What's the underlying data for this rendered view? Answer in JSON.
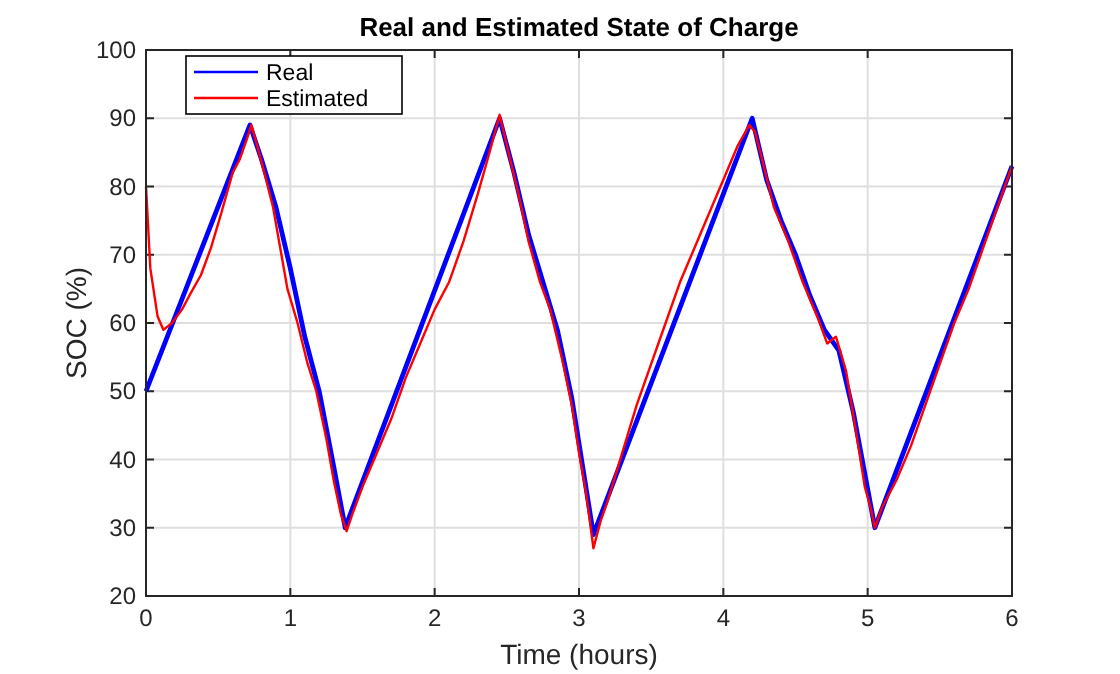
{
  "chart_data": {
    "type": "line",
    "title": "Real and Estimated State of Charge",
    "xlabel": "Time (hours)",
    "ylabel": "SOC (%)",
    "xlim": [
      0,
      6
    ],
    "xticks": [
      0,
      1,
      2,
      3,
      4,
      5,
      6
    ],
    "ylim": [
      20,
      100
    ],
    "yticks": [
      20,
      30,
      40,
      50,
      60,
      70,
      80,
      90,
      100
    ],
    "grid": true,
    "legend": "top left",
    "marker": "none",
    "line_style": "solid",
    "series": [
      {
        "name": "Real",
        "color": "#0000ff",
        "x": [
          0,
          0.72,
          0.8,
          0.9,
          1.0,
          1.1,
          1.2,
          1.3,
          1.38,
          2.45,
          2.55,
          2.65,
          2.75,
          2.85,
          2.95,
          3.1,
          4.2,
          4.3,
          4.4,
          4.5,
          4.6,
          4.7,
          4.8,
          4.9,
          5.05,
          6
        ],
        "values": [
          50,
          89,
          84,
          77,
          68,
          58,
          50,
          39,
          30,
          90,
          82,
          73,
          66,
          59,
          49,
          29,
          90,
          81,
          75,
          70,
          64,
          59,
          56,
          47,
          30,
          83
        ]
      },
      {
        "name": "Estimated",
        "color": "#ff0000",
        "x": [
          0,
          0.03,
          0.08,
          0.12,
          0.18,
          0.25,
          0.3,
          0.38,
          0.45,
          0.52,
          0.6,
          0.65,
          0.7,
          0.73,
          0.77,
          0.82,
          0.88,
          0.93,
          0.98,
          1.05,
          1.12,
          1.18,
          1.25,
          1.3,
          1.35,
          1.39,
          1.43,
          1.5,
          1.6,
          1.7,
          1.8,
          1.9,
          2.0,
          2.1,
          2.2,
          2.3,
          2.38,
          2.45,
          2.5,
          2.58,
          2.65,
          2.73,
          2.8,
          2.88,
          2.95,
          3.0,
          3.05,
          3.1,
          3.15,
          3.2,
          3.3,
          3.4,
          3.5,
          3.6,
          3.7,
          3.8,
          3.9,
          4.0,
          4.1,
          4.18,
          4.22,
          4.28,
          4.35,
          4.45,
          4.55,
          4.65,
          4.72,
          4.78,
          4.85,
          4.92,
          4.98,
          5.02,
          5.05,
          5.1,
          5.2,
          5.3,
          5.4,
          5.5,
          5.6,
          5.7,
          5.8,
          5.9,
          6.0
        ],
        "values": [
          80,
          68,
          61,
          59,
          60,
          62,
          64,
          67,
          71,
          76,
          82,
          84,
          87,
          89,
          86,
          82,
          77,
          71,
          65,
          60,
          54,
          50,
          43,
          37,
          32,
          29.5,
          32,
          36,
          41,
          46,
          52,
          57,
          62,
          66,
          72,
          79,
          85,
          90.5,
          86,
          79,
          72,
          66,
          62,
          55,
          48,
          41,
          35,
          27,
          31,
          34,
          41,
          48,
          54,
          60,
          66,
          71,
          76,
          81,
          86,
          89,
          88,
          83,
          77,
          72,
          66,
          61,
          57,
          58,
          53,
          44,
          36,
          33,
          30,
          33,
          37,
          42,
          48,
          54,
          60,
          65,
          71,
          77,
          83
        ]
      }
    ]
  }
}
